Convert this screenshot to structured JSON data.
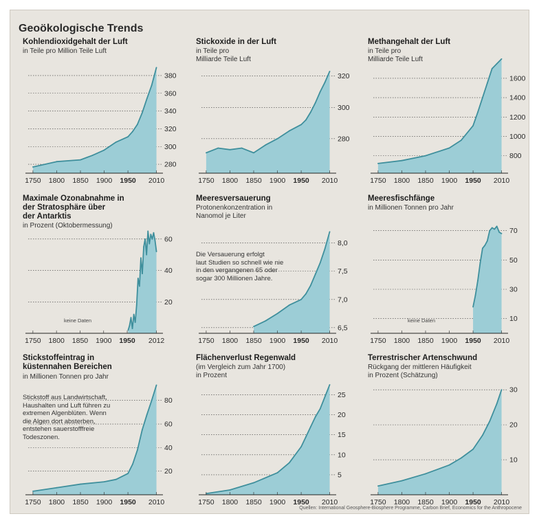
{
  "title": "Geoökologische Trends",
  "sources": "Quellen: International Geosphere-Biosphere Programme, Carbon Brief, Economics for the Anthropocene",
  "colors": {
    "fill": "#9ccdd6",
    "line": "#3f8f9c",
    "grid": "#3a3a3a",
    "text": "#2a2a2a"
  },
  "chart_data": [
    {
      "type": "area",
      "title": "Kohlendioxidgehalt der Luft",
      "subtitle": "in Teile pro Million Teile Luft",
      "xticks": [
        "1750",
        "1800",
        "1850",
        "1900",
        "1950",
        "2010"
      ],
      "xlim": [
        1740,
        2015
      ],
      "ylim": [
        270,
        390
      ],
      "yticks": [
        "280",
        "300",
        "320",
        "340",
        "360",
        "380"
      ],
      "x": [
        1750,
        1800,
        1850,
        1875,
        1900,
        1925,
        1950,
        1960,
        1970,
        1980,
        1990,
        2000,
        2010
      ],
      "y": [
        277,
        283,
        285,
        290,
        296,
        305,
        311,
        317,
        325,
        338,
        354,
        369,
        389
      ]
    },
    {
      "type": "area",
      "title": "Stickoxide in der Luft",
      "subtitle": "in Teile pro\nMilliarde Teile Luft",
      "xticks": [
        "1750",
        "1800",
        "1850",
        "1900",
        "1950",
        "2010"
      ],
      "xlim": [
        1740,
        2015
      ],
      "ylim": [
        258,
        326
      ],
      "yticks": [
        "280",
        "300",
        "320"
      ],
      "x": [
        1750,
        1775,
        1800,
        1825,
        1850,
        1875,
        1900,
        1925,
        1950,
        1960,
        1970,
        1980,
        1990,
        2000,
        2010
      ],
      "y": [
        271,
        274,
        273,
        274,
        271,
        276,
        280,
        285,
        289,
        292,
        297,
        303,
        310,
        316,
        323
      ]
    },
    {
      "type": "area",
      "title": "Methangehalt der Luft",
      "subtitle": "in Teile pro\nMilliarde Teile Luft",
      "xticks": [
        "1750",
        "1800",
        "1850",
        "1900",
        "1950",
        "2010"
      ],
      "xlim": [
        1740,
        2015
      ],
      "ylim": [
        620,
        1720
      ],
      "yticks": [
        "800",
        "1000",
        "1200",
        "1400",
        "1600"
      ],
      "x": [
        1750,
        1800,
        1850,
        1900,
        1925,
        1950,
        1960,
        1970,
        1980,
        1990,
        2000,
        2010
      ],
      "y": [
        720,
        750,
        800,
        880,
        960,
        1110,
        1250,
        1400,
        1550,
        1700,
        1750,
        1800
      ]
    },
    {
      "type": "area",
      "title": "Maximale Ozonabnahme in\nder Stratosphäre über\nder Antarktis",
      "subtitle": "in Prozent (Oktobermessung)",
      "annotation": "keine Daten",
      "xticks": [
        "1750",
        "1800",
        "1850",
        "1900",
        "1950",
        "2012"
      ],
      "xlim": [
        1740,
        2017
      ],
      "ylim": [
        0,
        70
      ],
      "yticks": [
        "20",
        "40",
        "60"
      ],
      "x": [
        1952,
        1955,
        1958,
        1961,
        1964,
        1967,
        1970,
        1973,
        1976,
        1979,
        1982,
        1985,
        1988,
        1991,
        1994,
        1997,
        2000,
        2003,
        2006,
        2009,
        2012
      ],
      "y": [
        2,
        5,
        10,
        3,
        12,
        7,
        18,
        35,
        30,
        48,
        38,
        55,
        60,
        50,
        65,
        57,
        63,
        60,
        64,
        59,
        52
      ]
    },
    {
      "type": "area",
      "title": "Meeresversauerung",
      "subtitle": "Protonenkonzentration in\nNanomol je Liter",
      "annotation": "Die Versauerung erfolgt\nlaut Studien so schnell wie nie\nin den vergangenen 65 oder\nsogar 300 Millionen Jahre.",
      "xticks": [
        "1750",
        "1800",
        "1850",
        "1900",
        "1950",
        "2010"
      ],
      "xlim": [
        1740,
        2015
      ],
      "ylim": [
        6.4,
        8.35
      ],
      "yticks": [
        "6,5",
        "7,0",
        "7,5",
        "8,0"
      ],
      "x": [
        1850,
        1875,
        1900,
        1925,
        1950,
        1960,
        1970,
        1980,
        1990,
        2000,
        2010
      ],
      "y": [
        6.52,
        6.62,
        6.75,
        6.9,
        7.0,
        7.1,
        7.25,
        7.45,
        7.65,
        7.9,
        8.2
      ]
    },
    {
      "type": "area",
      "title": "Meeresfischfänge",
      "subtitle": "in Millionen Tonnen pro Jahr",
      "annotation": "keine Daten",
      "xticks": [
        "1750",
        "1800",
        "1850",
        "1900",
        "1950",
        "2010"
      ],
      "xlim": [
        1740,
        2015
      ],
      "ylim": [
        0,
        75
      ],
      "yticks": [
        "10",
        "30",
        "50",
        "70"
      ],
      "x": [
        1950,
        1955,
        1960,
        1965,
        1970,
        1975,
        1980,
        1985,
        1990,
        1995,
        2000,
        2005,
        2010
      ],
      "y": [
        18,
        26,
        36,
        48,
        58,
        60,
        63,
        70,
        72,
        71,
        73,
        69,
        68
      ]
    },
    {
      "type": "area",
      "title": "Stickstoffeintrag in\nküstennahen Bereichen",
      "subtitle": "in Millionen Tonnen pro Jahr",
      "annotation": "Stickstoff aus Landwirtschaft,\nHaushalten und Luft führen zu\nextremen Algenblüten. Wenn\ndie Algen dort absterben,\nentstehen sauerstofffreie\nTodeszonen.",
      "xticks": [
        "1750",
        "1800",
        "1850",
        "1900",
        "1950",
        "2010"
      ],
      "xlim": [
        1740,
        2015
      ],
      "ylim": [
        0,
        95
      ],
      "yticks": [
        "20",
        "40",
        "60",
        "80"
      ],
      "x": [
        1750,
        1800,
        1850,
        1900,
        1925,
        1950,
        1960,
        1970,
        1980,
        1990,
        2000,
        2010
      ],
      "y": [
        3,
        6,
        9,
        11,
        13,
        18,
        26,
        38,
        55,
        68,
        80,
        93
      ]
    },
    {
      "type": "area",
      "title": "Flächenverlust Regenwald",
      "subtitle": "(im Vergleich zum Jahr 1700)\nin Prozent",
      "xticks": [
        "1750",
        "1800",
        "1850",
        "1900",
        "1950",
        "2010"
      ],
      "xlim": [
        1740,
        2015
      ],
      "ylim": [
        0,
        28
      ],
      "yticks": [
        "5",
        "10",
        "15",
        "20",
        "25"
      ],
      "x": [
        1750,
        1800,
        1850,
        1900,
        1925,
        1950,
        1960,
        1970,
        1980,
        1990,
        2000,
        2010
      ],
      "y": [
        0.3,
        1.2,
        3,
        5.5,
        8,
        12,
        14.5,
        17,
        19.5,
        21.5,
        24.5,
        27.5
      ]
    },
    {
      "type": "area",
      "title": "Terrestrischer Artenschwund",
      "subtitle": "Rückgang der mittleren Häufigkeit\nin Prozent (Schätzung)",
      "xticks": [
        "1750",
        "1800",
        "1850",
        "1900",
        "1950",
        "2010"
      ],
      "xlim": [
        1740,
        2015
      ],
      "ylim": [
        0,
        32
      ],
      "yticks": [
        "10",
        "20",
        "30"
      ],
      "x": [
        1750,
        1800,
        1850,
        1900,
        1925,
        1950,
        1970,
        1985,
        2000,
        2010
      ],
      "y": [
        2.5,
        4,
        6,
        8.5,
        10.5,
        13,
        17,
        21,
        26,
        30
      ]
    }
  ]
}
